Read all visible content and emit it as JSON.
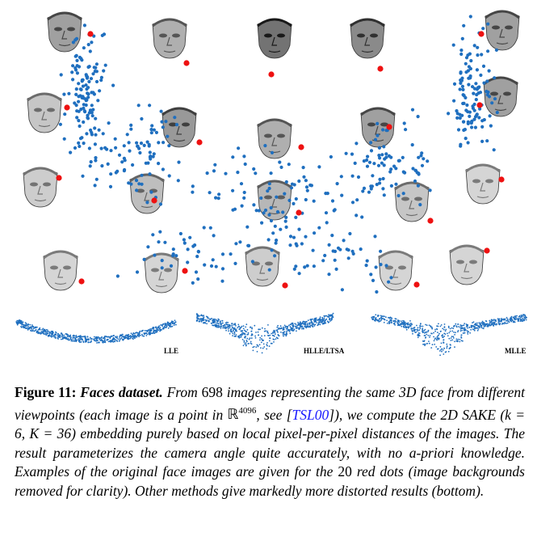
{
  "figure": {
    "method_labels": [
      "LLE",
      "HLLE/LTSA",
      "MLLE"
    ]
  },
  "caption": {
    "label": "Figure 11:",
    "title": "Faces dataset.",
    "t1": "From",
    "n_images": "698",
    "t2": "images representing the same 3D face from different viewpoints (each image is a point in",
    "space": "ℝ",
    "dim": "4096",
    "t3": ", see [",
    "cite": "TSL00",
    "t4": "]), we compute the 2D SAKE (",
    "params": "k = 6, K = 36",
    "t5": ") embedding purely based on local pixel-per-pixel distances of the images. The result parameterizes the camera angle quite accurately, with no a-priori knowledge. Examples of the original face images are given for the",
    "n_red": "20",
    "t6": "red dots (image backgrounds removed for clarity). Other methods give markedly more distorted results (bottom)."
  },
  "colors": {
    "point": "#1f6fbf",
    "highlight": "#ee1111",
    "face_dark": "#5a5a5a",
    "face_light": "#d8d8d8"
  }
}
